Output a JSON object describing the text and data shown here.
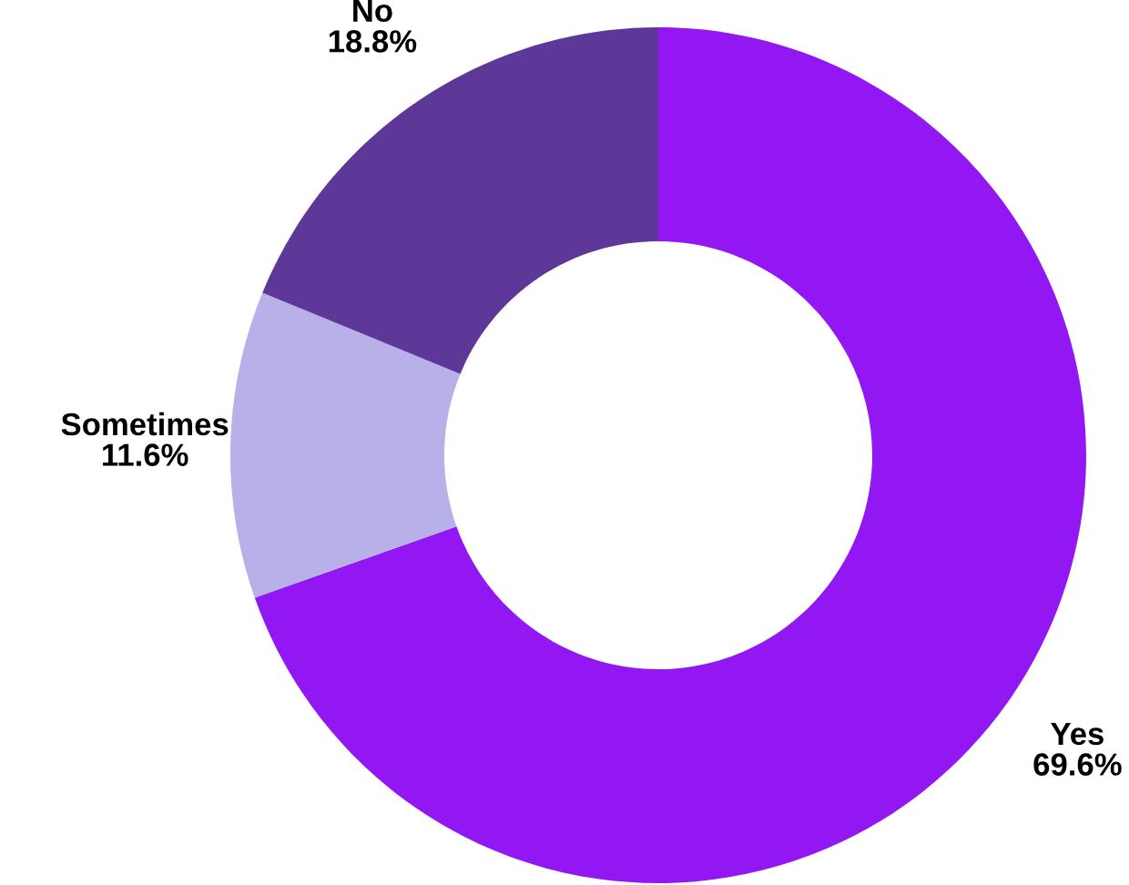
{
  "chart_data": {
    "type": "donut",
    "categories": [
      "Yes",
      "Sometimes",
      "No"
    ],
    "values": [
      69.6,
      11.6,
      18.8
    ],
    "colors": [
      "#9317f3",
      "#b8b0e8",
      "#5e3899"
    ],
    "value_labels": [
      "69.6%",
      "11.6%",
      "18.8%"
    ]
  }
}
